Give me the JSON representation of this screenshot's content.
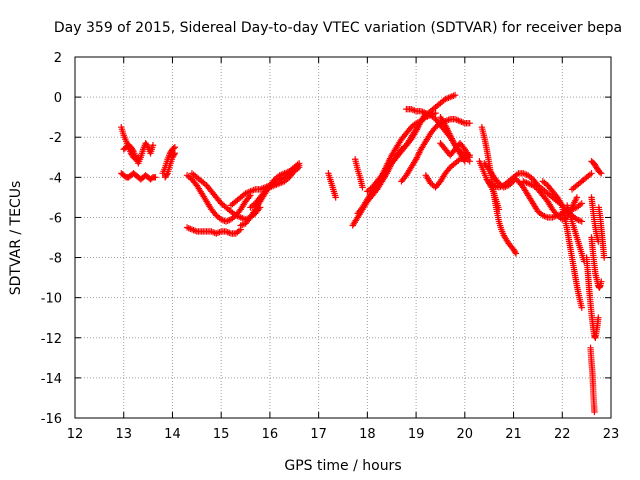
{
  "chart_data": {
    "type": "scatter",
    "title": "Day 359 of 2015, Sidereal Day-to-day VTEC variation (SDTVAR) for receiver bepa",
    "xlabel": "GPS time / hours",
    "ylabel": "SDTVAR / TECUs",
    "xlim": [
      12,
      23
    ],
    "ylim": [
      -16,
      2
    ],
    "xticks": [
      "12",
      "13",
      "14",
      "15",
      "16",
      "17",
      "18",
      "19",
      "20",
      "21",
      "22",
      "23"
    ],
    "yticks": [
      "2",
      "0",
      "-2",
      "-4",
      "-6",
      "-8",
      "-10",
      "-12",
      "-14",
      "-16"
    ],
    "grid": true,
    "marker": "+",
    "color": "#ff0000",
    "series": [
      {
        "name": "s1",
        "x": [
          12.95,
          13.0,
          13.05,
          13.1,
          13.15,
          13.2,
          13.25,
          13.3
        ],
        "y": [
          -1.5,
          -1.9,
          -2.2,
          -2.5,
          -2.8,
          -3.0,
          -3.1,
          -3.0
        ]
      },
      {
        "name": "s2",
        "x": [
          13.0,
          13.05,
          13.1,
          13.15,
          13.2,
          13.25,
          13.3,
          13.35,
          13.4,
          13.45,
          13.5,
          13.55,
          13.6
        ],
        "y": [
          -2.6,
          -2.5,
          -2.4,
          -2.5,
          -2.7,
          -3.0,
          -3.3,
          -3.0,
          -2.6,
          -2.3,
          -2.5,
          -2.8,
          -2.4
        ]
      },
      {
        "name": "s3",
        "x": [
          12.95,
          13.0,
          13.05,
          13.1,
          13.15,
          13.2,
          13.25,
          13.3,
          13.35,
          13.4,
          13.45,
          13.5,
          13.55,
          13.6,
          13.65
        ],
        "y": [
          -3.8,
          -3.9,
          -4.0,
          -4.0,
          -3.9,
          -3.8,
          -3.9,
          -4.0,
          -4.1,
          -4.0,
          -3.9,
          -4.0,
          -4.1,
          -4.0,
          -4.0
        ]
      },
      {
        "name": "s4",
        "x": [
          13.8,
          13.85,
          13.9,
          13.95,
          14.0,
          14.05
        ],
        "y": [
          -3.8,
          -3.5,
          -3.1,
          -2.8,
          -2.6,
          -2.5
        ]
      },
      {
        "name": "s5",
        "x": [
          13.85,
          13.9,
          13.95,
          14.0,
          14.05
        ],
        "y": [
          -4.0,
          -3.8,
          -3.4,
          -3.0,
          -2.8
        ]
      },
      {
        "name": "s6",
        "x": [
          14.3,
          14.4,
          14.5,
          14.6,
          14.7,
          14.8,
          14.9,
          15.0,
          15.1,
          15.2,
          15.3,
          15.4
        ],
        "y": [
          -6.5,
          -6.6,
          -6.7,
          -6.7,
          -6.7,
          -6.7,
          -6.8,
          -6.7,
          -6.7,
          -6.8,
          -6.8,
          -6.6
        ]
      },
      {
        "name": "s7",
        "x": [
          14.3,
          14.4,
          14.5,
          14.6,
          14.7,
          14.8,
          14.9,
          15.0,
          15.1,
          15.2,
          15.3,
          15.4,
          15.5,
          15.6
        ],
        "y": [
          -3.9,
          -4.1,
          -4.4,
          -4.8,
          -5.2,
          -5.6,
          -5.9,
          -6.1,
          -6.2,
          -6.1,
          -5.9,
          -5.6,
          -5.2,
          -4.9
        ]
      },
      {
        "name": "s8",
        "x": [
          14.4,
          14.5,
          14.6,
          14.7,
          14.8,
          14.9,
          15.0,
          15.1,
          15.2,
          15.3,
          15.4,
          15.5,
          15.6,
          15.7,
          15.8
        ],
        "y": [
          -3.8,
          -4.0,
          -4.2,
          -4.4,
          -4.7,
          -5.0,
          -5.3,
          -5.5,
          -5.7,
          -5.9,
          -6.0,
          -6.1,
          -6.0,
          -5.8,
          -5.5
        ]
      },
      {
        "name": "s9",
        "x": [
          15.2,
          15.3,
          15.4,
          15.5,
          15.6,
          15.7,
          15.8,
          15.9,
          16.0,
          16.1,
          16.2,
          16.3,
          16.4,
          16.5,
          16.6
        ],
        "y": [
          -5.4,
          -5.2,
          -5.0,
          -4.8,
          -4.7,
          -4.6,
          -4.6,
          -4.5,
          -4.4,
          -4.3,
          -4.1,
          -4.0,
          -3.8,
          -3.6,
          -3.4
        ]
      },
      {
        "name": "s10",
        "x": [
          15.4,
          15.5,
          15.6,
          15.7,
          15.8,
          15.9,
          16.0,
          16.1,
          16.2,
          16.3,
          16.4,
          16.5,
          16.6
        ],
        "y": [
          -6.4,
          -6.3,
          -6.0,
          -5.6,
          -5.2,
          -4.8,
          -4.4,
          -4.1,
          -3.9,
          -3.8,
          -3.7,
          -3.5,
          -3.3
        ]
      },
      {
        "name": "s11",
        "x": [
          15.6,
          15.7,
          15.8,
          15.9,
          16.0,
          16.1,
          16.2,
          16.3,
          16.4,
          16.5,
          16.6
        ],
        "y": [
          -5.5,
          -5.3,
          -5.0,
          -4.7,
          -4.5,
          -4.4,
          -4.3,
          -4.2,
          -4.0,
          -3.7,
          -3.5
        ]
      },
      {
        "name": "s12",
        "x": [
          17.2,
          17.25,
          17.3,
          17.35
        ],
        "y": [
          -3.8,
          -4.2,
          -4.6,
          -5.0
        ]
      },
      {
        "name": "s13",
        "x": [
          17.75,
          17.8,
          17.85,
          17.9
        ],
        "y": [
          -3.1,
          -3.6,
          -4.0,
          -4.5
        ]
      },
      {
        "name": "s14",
        "x": [
          17.7,
          17.8,
          17.9,
          18.0,
          18.1,
          18.2,
          18.3,
          18.4,
          18.5,
          18.6,
          18.7,
          18.8,
          18.9,
          19.0,
          19.1,
          19.2
        ],
        "y": [
          -6.4,
          -6.0,
          -5.6,
          -5.2,
          -4.9,
          -4.6,
          -4.2,
          -3.8,
          -3.3,
          -2.9,
          -2.6,
          -2.4,
          -2.1,
          -1.7,
          -1.2,
          -0.8
        ]
      },
      {
        "name": "s15",
        "x": [
          17.8,
          17.9,
          18.0,
          18.1,
          18.2,
          18.3,
          18.4,
          18.5,
          18.6,
          18.7,
          18.8,
          18.9,
          19.0,
          19.1,
          19.2,
          19.3,
          19.4
        ],
        "y": [
          -5.8,
          -5.5,
          -5.1,
          -4.7,
          -4.3,
          -3.9,
          -3.4,
          -2.9,
          -2.5,
          -2.1,
          -1.8,
          -1.5,
          -1.3,
          -1.2,
          -1.0,
          -0.9,
          -0.8
        ]
      },
      {
        "name": "s16",
        "x": [
          18.0,
          18.1,
          18.2,
          18.3,
          18.4,
          18.5,
          18.6,
          18.7,
          18.8,
          18.9,
          19.0,
          19.1,
          19.2,
          19.3,
          19.4,
          19.5,
          19.6,
          19.7,
          19.8
        ],
        "y": [
          -4.7,
          -4.5,
          -4.2,
          -3.9,
          -3.6,
          -3.3,
          -3.0,
          -2.7,
          -2.4,
          -2.0,
          -1.6,
          -1.2,
          -0.9,
          -0.7,
          -0.5,
          -0.3,
          -0.1,
          0.0,
          0.1
        ]
      },
      {
        "name": "s17",
        "x": [
          18.8,
          18.9,
          19.0,
          19.1,
          19.2,
          19.3,
          19.4,
          19.5,
          19.6,
          19.7,
          19.8,
          19.9,
          20.0
        ],
        "y": [
          -0.6,
          -0.6,
          -0.7,
          -0.7,
          -0.8,
          -0.9,
          -1.1,
          -1.4,
          -1.7,
          -2.0,
          -2.4,
          -2.8,
          -3.2
        ]
      },
      {
        "name": "s18",
        "x": [
          18.7,
          18.8,
          18.9,
          19.0,
          19.1,
          19.2,
          19.3,
          19.4,
          19.5,
          19.6,
          19.7,
          19.8,
          19.9,
          20.0,
          20.1
        ],
        "y": [
          -4.2,
          -3.9,
          -3.5,
          -3.1,
          -2.6,
          -2.2,
          -1.8,
          -1.5,
          -1.3,
          -1.2,
          -1.1,
          -1.1,
          -1.2,
          -1.3,
          -1.3
        ]
      },
      {
        "name": "s19",
        "x": [
          19.2,
          19.3,
          19.4,
          19.5,
          19.6,
          19.7,
          19.8,
          19.9,
          20.0,
          20.1
        ],
        "y": [
          -3.9,
          -4.3,
          -4.5,
          -4.2,
          -3.8,
          -3.5,
          -3.3,
          -3.1,
          -3.0,
          -3.2
        ]
      },
      {
        "name": "s20",
        "x": [
          19.5,
          19.6,
          19.7,
          19.8,
          19.9,
          20.0,
          20.1
        ],
        "y": [
          -2.3,
          -2.6,
          -2.9,
          -2.6,
          -2.3,
          -2.6,
          -3.0
        ]
      },
      {
        "name": "s21",
        "x": [
          19.5,
          19.6,
          19.7,
          19.8,
          19.9,
          20.0,
          20.1
        ],
        "y": [
          -1.0,
          -1.4,
          -1.9,
          -2.4,
          -2.7,
          -2.9,
          -2.9
        ]
      },
      {
        "name": "s22",
        "x": [
          20.35,
          20.4,
          20.45,
          20.5,
          20.55,
          20.6,
          20.65,
          20.7,
          20.75,
          20.8,
          20.9,
          21.0,
          21.05
        ],
        "y": [
          -1.5,
          -2.0,
          -2.6,
          -3.3,
          -4.1,
          -4.9,
          -5.6,
          -6.2,
          -6.6,
          -6.9,
          -7.3,
          -7.6,
          -7.8
        ]
      },
      {
        "name": "s23",
        "x": [
          20.3,
          20.35,
          20.4,
          20.45,
          20.5,
          20.55,
          20.6,
          20.65,
          20.7
        ],
        "y": [
          -3.2,
          -3.5,
          -3.8,
          -4.1,
          -4.3,
          -4.5,
          -4.8,
          -5.2,
          -5.6
        ]
      },
      {
        "name": "s24",
        "x": [
          20.5,
          20.6,
          20.7,
          20.8,
          20.9,
          21.0,
          21.1,
          21.2,
          21.3,
          21.4,
          21.5,
          21.6,
          21.7,
          21.8,
          21.9,
          22.0
        ],
        "y": [
          -4.3,
          -4.4,
          -4.5,
          -4.4,
          -4.2,
          -4.0,
          -3.8,
          -3.8,
          -3.9,
          -4.1,
          -4.4,
          -4.6,
          -4.8,
          -5.0,
          -5.2,
          -5.4
        ]
      },
      {
        "name": "s25",
        "x": [
          20.4,
          20.5,
          20.6,
          20.7,
          20.8,
          20.9,
          21.0
        ],
        "y": [
          -3.3,
          -3.6,
          -4.0,
          -4.3,
          -4.5,
          -4.4,
          -4.2
        ]
      },
      {
        "name": "s26",
        "x": [
          21.0,
          21.1,
          21.2,
          21.3,
          21.4,
          21.5,
          21.6,
          21.7,
          21.8,
          21.9,
          22.0,
          22.1,
          22.2,
          22.3,
          22.4
        ],
        "y": [
          -4.0,
          -4.2,
          -4.5,
          -4.9,
          -5.3,
          -5.7,
          -5.9,
          -6.0,
          -6.0,
          -5.9,
          -5.8,
          -5.7,
          -5.6,
          -5.5,
          -5.3
        ]
      },
      {
        "name": "s27",
        "x": [
          21.2,
          21.3,
          21.4,
          21.5,
          21.6,
          21.7,
          21.8,
          21.9,
          22.0,
          22.1,
          22.2,
          22.3
        ],
        "y": [
          -4.2,
          -4.3,
          -4.4,
          -4.6,
          -4.9,
          -5.2,
          -5.6,
          -5.9,
          -6.1,
          -6.0,
          -5.5,
          -5.0
        ]
      },
      {
        "name": "s28",
        "x": [
          21.6,
          21.7,
          21.8,
          21.9,
          22.0,
          22.1,
          22.2,
          22.3,
          22.4
        ],
        "y": [
          -4.2,
          -4.4,
          -4.7,
          -5.0,
          -5.4,
          -5.7,
          -5.9,
          -6.1,
          -6.2
        ]
      },
      {
        "name": "s29",
        "x": [
          22.0,
          22.05,
          22.1,
          22.15,
          22.2,
          22.25,
          22.3,
          22.35,
          22.4
        ],
        "y": [
          -5.5,
          -6.0,
          -6.6,
          -7.3,
          -8.0,
          -8.7,
          -9.4,
          -10.0,
          -10.5
        ]
      },
      {
        "name": "s30",
        "x": [
          22.1,
          22.15,
          22.2,
          22.25,
          22.3,
          22.35,
          22.4,
          22.45
        ],
        "y": [
          -5.4,
          -5.8,
          -6.2,
          -6.6,
          -7.0,
          -7.4,
          -7.8,
          -8.2
        ]
      },
      {
        "name": "s31",
        "x": [
          22.2,
          22.3,
          22.4,
          22.5,
          22.6
        ],
        "y": [
          -4.6,
          -4.4,
          -4.2,
          -4.0,
          -3.8
        ]
      },
      {
        "name": "s32",
        "x": [
          22.6,
          22.65,
          22.7,
          22.75,
          22.8
        ],
        "y": [
          -3.2,
          -3.3,
          -3.5,
          -3.7,
          -3.8
        ]
      },
      {
        "name": "s33",
        "x": [
          22.6,
          22.62,
          22.64,
          22.66,
          22.68,
          22.7,
          22.72,
          22.74
        ],
        "y": [
          -5.0,
          -5.4,
          -5.8,
          -6.2,
          -6.5,
          -6.8,
          -7.0,
          -7.2
        ]
      },
      {
        "name": "s34",
        "x": [
          22.5,
          22.52,
          22.54,
          22.56,
          22.58,
          22.6,
          22.62,
          22.64,
          22.66,
          22.68,
          22.7,
          22.72,
          22.74
        ],
        "y": [
          -8.0,
          -8.6,
          -9.2,
          -9.8,
          -10.3,
          -10.8,
          -11.2,
          -11.6,
          -11.9,
          -12.0,
          -11.7,
          -11.4,
          -11.0
        ]
      },
      {
        "name": "s35",
        "x": [
          22.6,
          22.62,
          22.64,
          22.66,
          22.68,
          22.7,
          22.72,
          22.74,
          22.76,
          22.78,
          22.8
        ],
        "y": [
          -7.0,
          -7.5,
          -8.0,
          -8.4,
          -8.8,
          -9.0,
          -9.2,
          -9.4,
          -9.5,
          -9.4,
          -9.2
        ]
      },
      {
        "name": "s36",
        "x": [
          22.75,
          22.78,
          22.8,
          22.82,
          22.84,
          22.86
        ],
        "y": [
          -5.5,
          -6.0,
          -6.5,
          -7.0,
          -7.5,
          -8.0
        ]
      },
      {
        "name": "s37",
        "x": [
          22.58,
          22.6,
          22.62,
          22.63,
          22.64,
          22.66
        ],
        "y": [
          -12.5,
          -13.2,
          -13.8,
          -14.3,
          -14.9,
          -15.7
        ]
      }
    ]
  }
}
